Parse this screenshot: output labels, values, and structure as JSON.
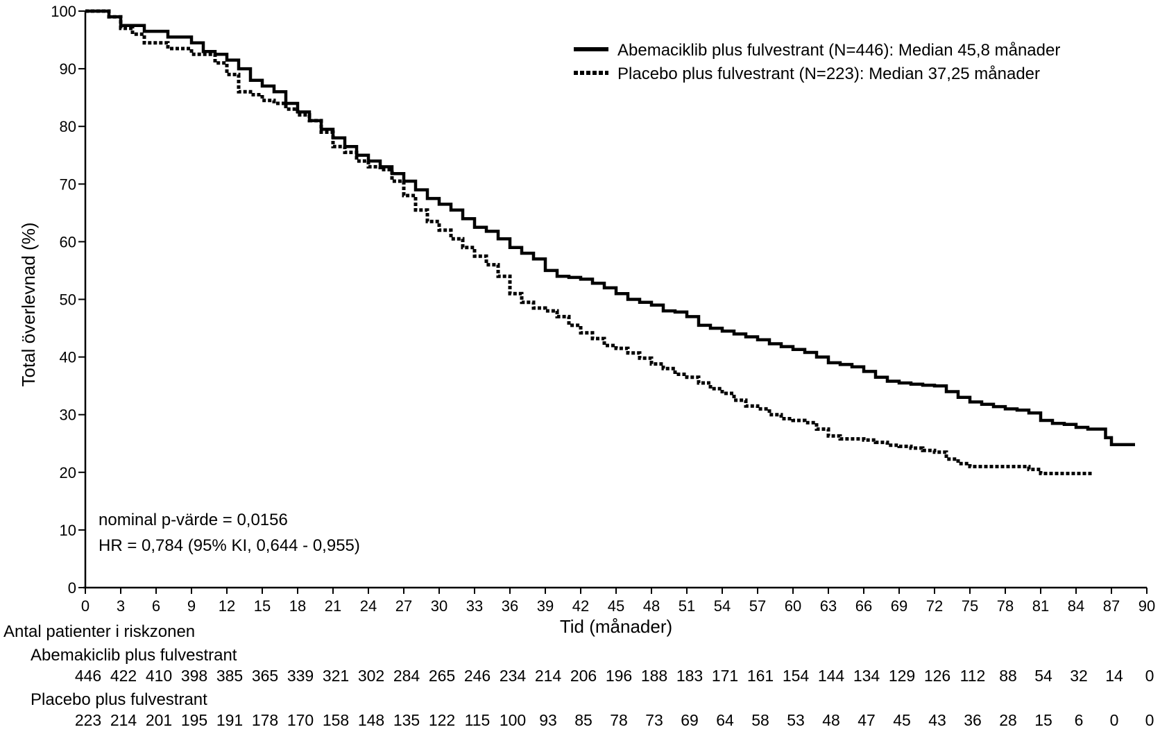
{
  "chart_data": {
    "type": "line",
    "subtype": "kaplan-meier",
    "ylabel": "Total överlevnad (%)",
    "xlabel": "Tid (månader)",
    "xlim": [
      0,
      90
    ],
    "ylim": [
      0,
      100
    ],
    "x_ticks": [
      "0",
      "3",
      "6",
      "9",
      "12",
      "15",
      "18",
      "21",
      "24",
      "27",
      "30",
      "33",
      "36",
      "39",
      "42",
      "45",
      "48",
      "51",
      "54",
      "57",
      "60",
      "63",
      "66",
      "69",
      "72",
      "75",
      "78",
      "81",
      "84",
      "87",
      "90"
    ],
    "y_ticks": [
      "0",
      "10",
      "20",
      "30",
      "40",
      "50",
      "60",
      "70",
      "80",
      "90",
      "100"
    ],
    "legend_position": "top-right",
    "annotations": {
      "p_value": "nominal p-värde = 0,0156",
      "hr": "HR =  0,784 (95% KI, 0,644 - 0,955)"
    },
    "series": [
      {
        "name": "Abemaciklib plus fulvestrant (N=446): Median 45,8 månader",
        "style": "solid",
        "points": [
          [
            0,
            100
          ],
          [
            2,
            99
          ],
          [
            3,
            97.5
          ],
          [
            5,
            96.5
          ],
          [
            7,
            95.5
          ],
          [
            9,
            94.5
          ],
          [
            10,
            93
          ],
          [
            11,
            92.5
          ],
          [
            12,
            91.5
          ],
          [
            13,
            90
          ],
          [
            14,
            88
          ],
          [
            15,
            87
          ],
          [
            16,
            86
          ],
          [
            17,
            84
          ],
          [
            18,
            82.5
          ],
          [
            19,
            81
          ],
          [
            20,
            79.5
          ],
          [
            21,
            78
          ],
          [
            22,
            76.5
          ],
          [
            23,
            75
          ],
          [
            24,
            74
          ],
          [
            25,
            73
          ],
          [
            26,
            71.8
          ],
          [
            27,
            70.5
          ],
          [
            28,
            69
          ],
          [
            29,
            67.5
          ],
          [
            30,
            66.5
          ],
          [
            31,
            65.5
          ],
          [
            32,
            64
          ],
          [
            33,
            62.5
          ],
          [
            34,
            61.8
          ],
          [
            35,
            60.5
          ],
          [
            36,
            59
          ],
          [
            37,
            58
          ],
          [
            38,
            57
          ],
          [
            39,
            55
          ],
          [
            40,
            54
          ],
          [
            41,
            53.8
          ],
          [
            42,
            53.5
          ],
          [
            43,
            52.8
          ],
          [
            44,
            52
          ],
          [
            45,
            51
          ],
          [
            46,
            50
          ],
          [
            47,
            49.5
          ],
          [
            48,
            49
          ],
          [
            49,
            48
          ],
          [
            50,
            47.8
          ],
          [
            51,
            47
          ],
          [
            52,
            45.5
          ],
          [
            53,
            45
          ],
          [
            54,
            44.5
          ],
          [
            55,
            44
          ],
          [
            56,
            43.5
          ],
          [
            57,
            43
          ],
          [
            58,
            42.3
          ],
          [
            59,
            41.8
          ],
          [
            60,
            41.3
          ],
          [
            61,
            40.8
          ],
          [
            62,
            40
          ],
          [
            63,
            39
          ],
          [
            64,
            38.7
          ],
          [
            65,
            38.3
          ],
          [
            66,
            37.5
          ],
          [
            67,
            36.5
          ],
          [
            68,
            35.8
          ],
          [
            69,
            35.5
          ],
          [
            70,
            35.3
          ],
          [
            71,
            35.1
          ],
          [
            72,
            35
          ],
          [
            73,
            34
          ],
          [
            74,
            33
          ],
          [
            75,
            32.2
          ],
          [
            76,
            31.8
          ],
          [
            77,
            31.4
          ],
          [
            78,
            31
          ],
          [
            79,
            30.8
          ],
          [
            80,
            30.3
          ],
          [
            81,
            29
          ],
          [
            82,
            28.5
          ],
          [
            83,
            28.3
          ],
          [
            84,
            27.8
          ],
          [
            85,
            27.5
          ],
          [
            86,
            27.5
          ],
          [
            86.5,
            26
          ],
          [
            87,
            24.8
          ],
          [
            88,
            24.8
          ],
          [
            89,
            24.8
          ]
        ]
      },
      {
        "name": "Placebo plus fulvestrant (N=223): Median 37,25 månader",
        "style": "dotted",
        "points": [
          [
            0,
            100
          ],
          [
            2,
            99
          ],
          [
            3,
            97
          ],
          [
            4,
            96
          ],
          [
            5,
            94.5
          ],
          [
            7,
            93.5
          ],
          [
            9,
            92.5
          ],
          [
            10,
            92.5
          ],
          [
            11,
            91
          ],
          [
            12,
            89
          ],
          [
            13,
            86
          ],
          [
            14,
            85.5
          ],
          [
            15,
            84.5
          ],
          [
            16,
            84
          ],
          [
            17,
            83
          ],
          [
            18,
            82
          ],
          [
            19,
            81
          ],
          [
            20,
            79
          ],
          [
            21,
            76.5
          ],
          [
            22,
            75.5
          ],
          [
            23,
            74
          ],
          [
            24,
            73
          ],
          [
            25,
            72.5
          ],
          [
            26,
            70.5
          ],
          [
            27,
            68
          ],
          [
            28,
            65.5
          ],
          [
            29,
            63.5
          ],
          [
            30,
            62
          ],
          [
            31,
            60.5
          ],
          [
            32,
            59
          ],
          [
            33,
            57.5
          ],
          [
            34,
            56
          ],
          [
            35,
            54
          ],
          [
            36,
            51
          ],
          [
            37,
            49.5
          ],
          [
            38,
            48.5
          ],
          [
            39,
            48
          ],
          [
            40,
            47
          ],
          [
            41,
            45.5
          ],
          [
            42,
            44.2
          ],
          [
            43,
            43.2
          ],
          [
            44,
            42
          ],
          [
            45,
            41.5
          ],
          [
            46,
            40.7
          ],
          [
            47,
            39.8
          ],
          [
            48,
            38.8
          ],
          [
            49,
            38
          ],
          [
            50,
            37
          ],
          [
            51,
            36.5
          ],
          [
            52,
            35.5
          ],
          [
            53,
            34.5
          ],
          [
            54,
            33.7
          ],
          [
            55,
            32.5
          ],
          [
            56,
            31.5
          ],
          [
            57,
            31
          ],
          [
            58,
            30
          ],
          [
            59,
            29.3
          ],
          [
            60,
            29
          ],
          [
            61,
            28.6
          ],
          [
            62,
            27.5
          ],
          [
            63,
            26.3
          ],
          [
            64,
            25.8
          ],
          [
            65,
            25.8
          ],
          [
            66,
            25.6
          ],
          [
            67,
            25.2
          ],
          [
            68,
            24.7
          ],
          [
            69,
            24.5
          ],
          [
            70,
            24.2
          ],
          [
            71,
            23.8
          ],
          [
            72,
            23.5
          ],
          [
            73,
            22.3
          ],
          [
            74,
            21.5
          ],
          [
            75,
            21
          ],
          [
            76,
            21
          ],
          [
            77,
            21
          ],
          [
            78,
            21
          ],
          [
            79,
            21
          ],
          [
            80,
            20.5
          ],
          [
            81,
            19.8
          ],
          [
            82,
            19.8
          ],
          [
            83,
            19.8
          ],
          [
            84,
            19.8
          ],
          [
            85,
            19.8
          ],
          [
            85.5,
            19.8
          ]
        ]
      }
    ],
    "risk_table": {
      "title": "Antal patienter i riskzonen",
      "time_points": [
        0,
        3,
        6,
        9,
        12,
        15,
        18,
        21,
        24,
        27,
        30,
        33,
        36,
        39,
        42,
        45,
        48,
        51,
        54,
        57,
        60,
        63,
        66,
        69,
        72,
        75,
        78,
        81,
        84,
        87,
        90
      ],
      "rows": [
        {
          "label": "Abemakiclib plus fulvestrant",
          "values": [
            "446",
            "422",
            "410",
            "398",
            "385",
            "365",
            "339",
            "321",
            "302",
            "284",
            "265",
            "246",
            "234",
            "214",
            "206",
            "196",
            "188",
            "183",
            "171",
            "161",
            "154",
            "144",
            "134",
            "129",
            "126",
            "112",
            "88",
            "54",
            "32",
            "14",
            "0"
          ]
        },
        {
          "label": "Placebo plus fulvestrant",
          "values": [
            "223",
            "214",
            "201",
            "195",
            "191",
            "178",
            "170",
            "158",
            "148",
            "135",
            "122",
            "115",
            "100",
            "93",
            "85",
            "78",
            "73",
            "69",
            "64",
            "58",
            "53",
            "48",
            "47",
            "45",
            "43",
            "36",
            "28",
            "15",
            "6",
            "0",
            "0"
          ]
        }
      ]
    }
  }
}
